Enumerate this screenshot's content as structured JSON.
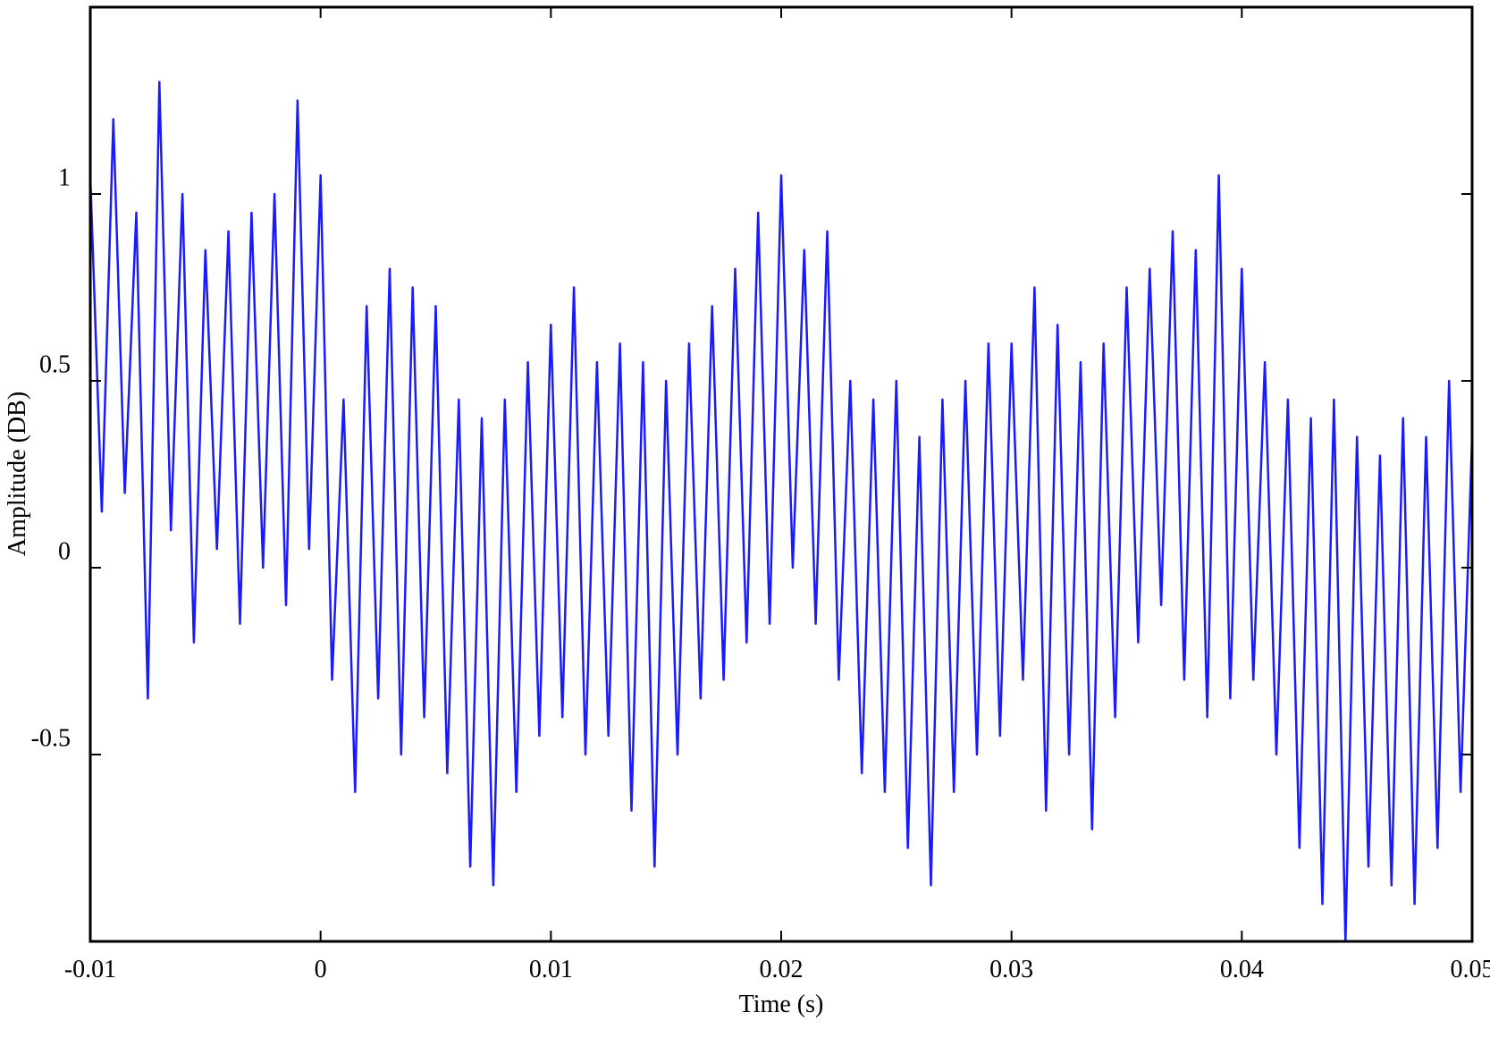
{
  "chart_data": {
    "type": "line",
    "x_label": "Time (s)",
    "y_label": "Amplitude (DB)",
    "xlim": [
      -0.01,
      0.05
    ],
    "xticks": [
      -0.01,
      0,
      0.01,
      0.02,
      0.03,
      0.04,
      0.05
    ],
    "ylim": [
      -1,
      1.5
    ],
    "yticks": [
      -0.5,
      0,
      0.5,
      1
    ],
    "grid": false,
    "x": [
      -0.01,
      -0.0095,
      -0.009,
      -0.0085,
      -0.008,
      -0.0075,
      -0.007,
      -0.0065,
      -0.006,
      -0.0055,
      -0.005,
      -0.0045,
      -0.004,
      -0.0035,
      -0.003,
      -0.0025,
      -0.002,
      -0.0015,
      -0.001,
      -0.0005,
      0,
      0.0005,
      0.001,
      0.0015,
      0.002,
      0.0025,
      0.003,
      0.0035,
      0.004,
      0.0045,
      0.005,
      0.0055,
      0.006,
      0.0065,
      0.007,
      0.0075,
      0.008,
      0.0085,
      0.009,
      0.0095,
      0.01,
      0.0105,
      0.011,
      0.0115,
      0.012,
      0.0125,
      0.013,
      0.0135,
      0.014,
      0.0145,
      0.015,
      0.0155,
      0.016,
      0.0165,
      0.017,
      0.0175,
      0.018,
      0.0185,
      0.019,
      0.0195,
      0.02,
      0.0205,
      0.021,
      0.0215,
      0.022,
      0.0225,
      0.023,
      0.0235,
      0.024,
      0.0245,
      0.025,
      0.0255,
      0.026,
      0.0265,
      0.027,
      0.0275,
      0.028,
      0.0285,
      0.029,
      0.0295,
      0.03,
      0.0305,
      0.031,
      0.0315,
      0.032,
      0.0325,
      0.033,
      0.0335,
      0.034,
      0.0345,
      0.035,
      0.0355,
      0.036,
      0.0365,
      0.037,
      0.0375,
      0.038,
      0.0385,
      0.039,
      0.0395,
      0.04,
      0.0405,
      0.041,
      0.0415,
      0.042,
      0.0425,
      0.043,
      0.0435,
      0.044,
      0.0445,
      0.045,
      0.0455,
      0.046,
      0.0465,
      0.047,
      0.0475,
      0.048,
      0.0485,
      0.049,
      0.0495,
      0.05
    ],
    "series": [
      {
        "color": "#1a1aff",
        "values": [
          1.05,
          0.15,
          1.2,
          0.2,
          0.95,
          -0.35,
          1.3,
          0.1,
          1.0,
          -0.2,
          0.85,
          0.05,
          0.9,
          -0.15,
          0.95,
          0.0,
          1.0,
          -0.1,
          1.25,
          0.05,
          1.05,
          -0.3,
          0.45,
          -0.6,
          0.7,
          -0.35,
          0.8,
          -0.5,
          0.75,
          -0.4,
          0.7,
          -0.55,
          0.45,
          -0.8,
          0.4,
          -0.85,
          0.45,
          -0.6,
          0.55,
          -0.45,
          0.65,
          -0.4,
          0.75,
          -0.5,
          0.55,
          -0.45,
          0.6,
          -0.65,
          0.55,
          -0.8,
          0.5,
          -0.5,
          0.6,
          -0.35,
          0.7,
          -0.3,
          0.8,
          -0.2,
          0.95,
          -0.15,
          1.05,
          0.0,
          0.85,
          -0.15,
          0.9,
          -0.3,
          0.5,
          -0.55,
          0.45,
          -0.6,
          0.5,
          -0.75,
          0.35,
          -0.85,
          0.45,
          -0.6,
          0.5,
          -0.5,
          0.6,
          -0.45,
          0.6,
          -0.3,
          0.75,
          -0.65,
          0.65,
          -0.5,
          0.55,
          -0.7,
          0.6,
          -0.4,
          0.75,
          -0.2,
          0.8,
          -0.1,
          0.9,
          -0.3,
          0.85,
          -0.4,
          1.05,
          -0.35,
          0.8,
          -0.3,
          0.55,
          -0.5,
          0.45,
          -0.75,
          0.4,
          -0.9,
          0.45,
          -1.0,
          0.35,
          -0.8,
          0.3,
          -0.85,
          0.4,
          -0.9,
          0.35,
          -0.75,
          0.5,
          -0.6,
          0.35
        ]
      }
    ]
  }
}
